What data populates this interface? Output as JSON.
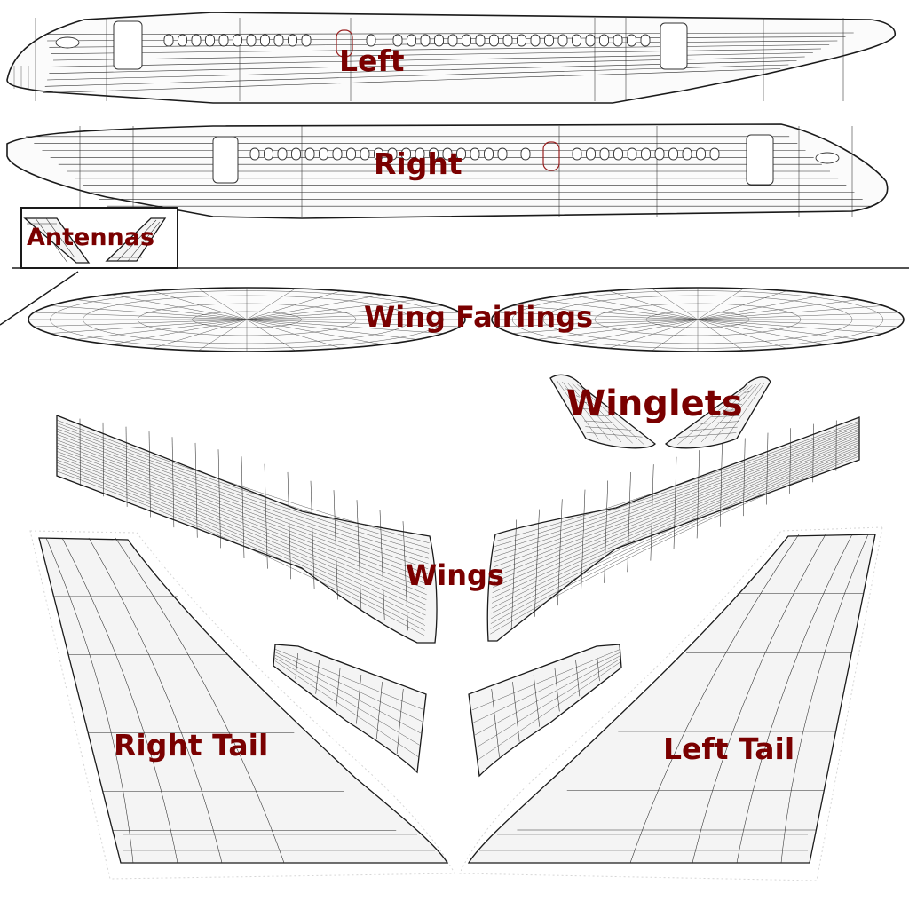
{
  "labels": {
    "left": "Left",
    "right": "Right",
    "antennas": "Antennas",
    "wing_fairlings": "Wing Fairlings",
    "winglets": "Winglets",
    "wings": "Wings",
    "right_tail": "Right Tail",
    "left_tail": "Left Tail"
  },
  "colors": {
    "label": "#7a0000",
    "wireframe": "#1a1a1a",
    "surface": "#f4f4f4",
    "door_marking": "#9a2020"
  }
}
